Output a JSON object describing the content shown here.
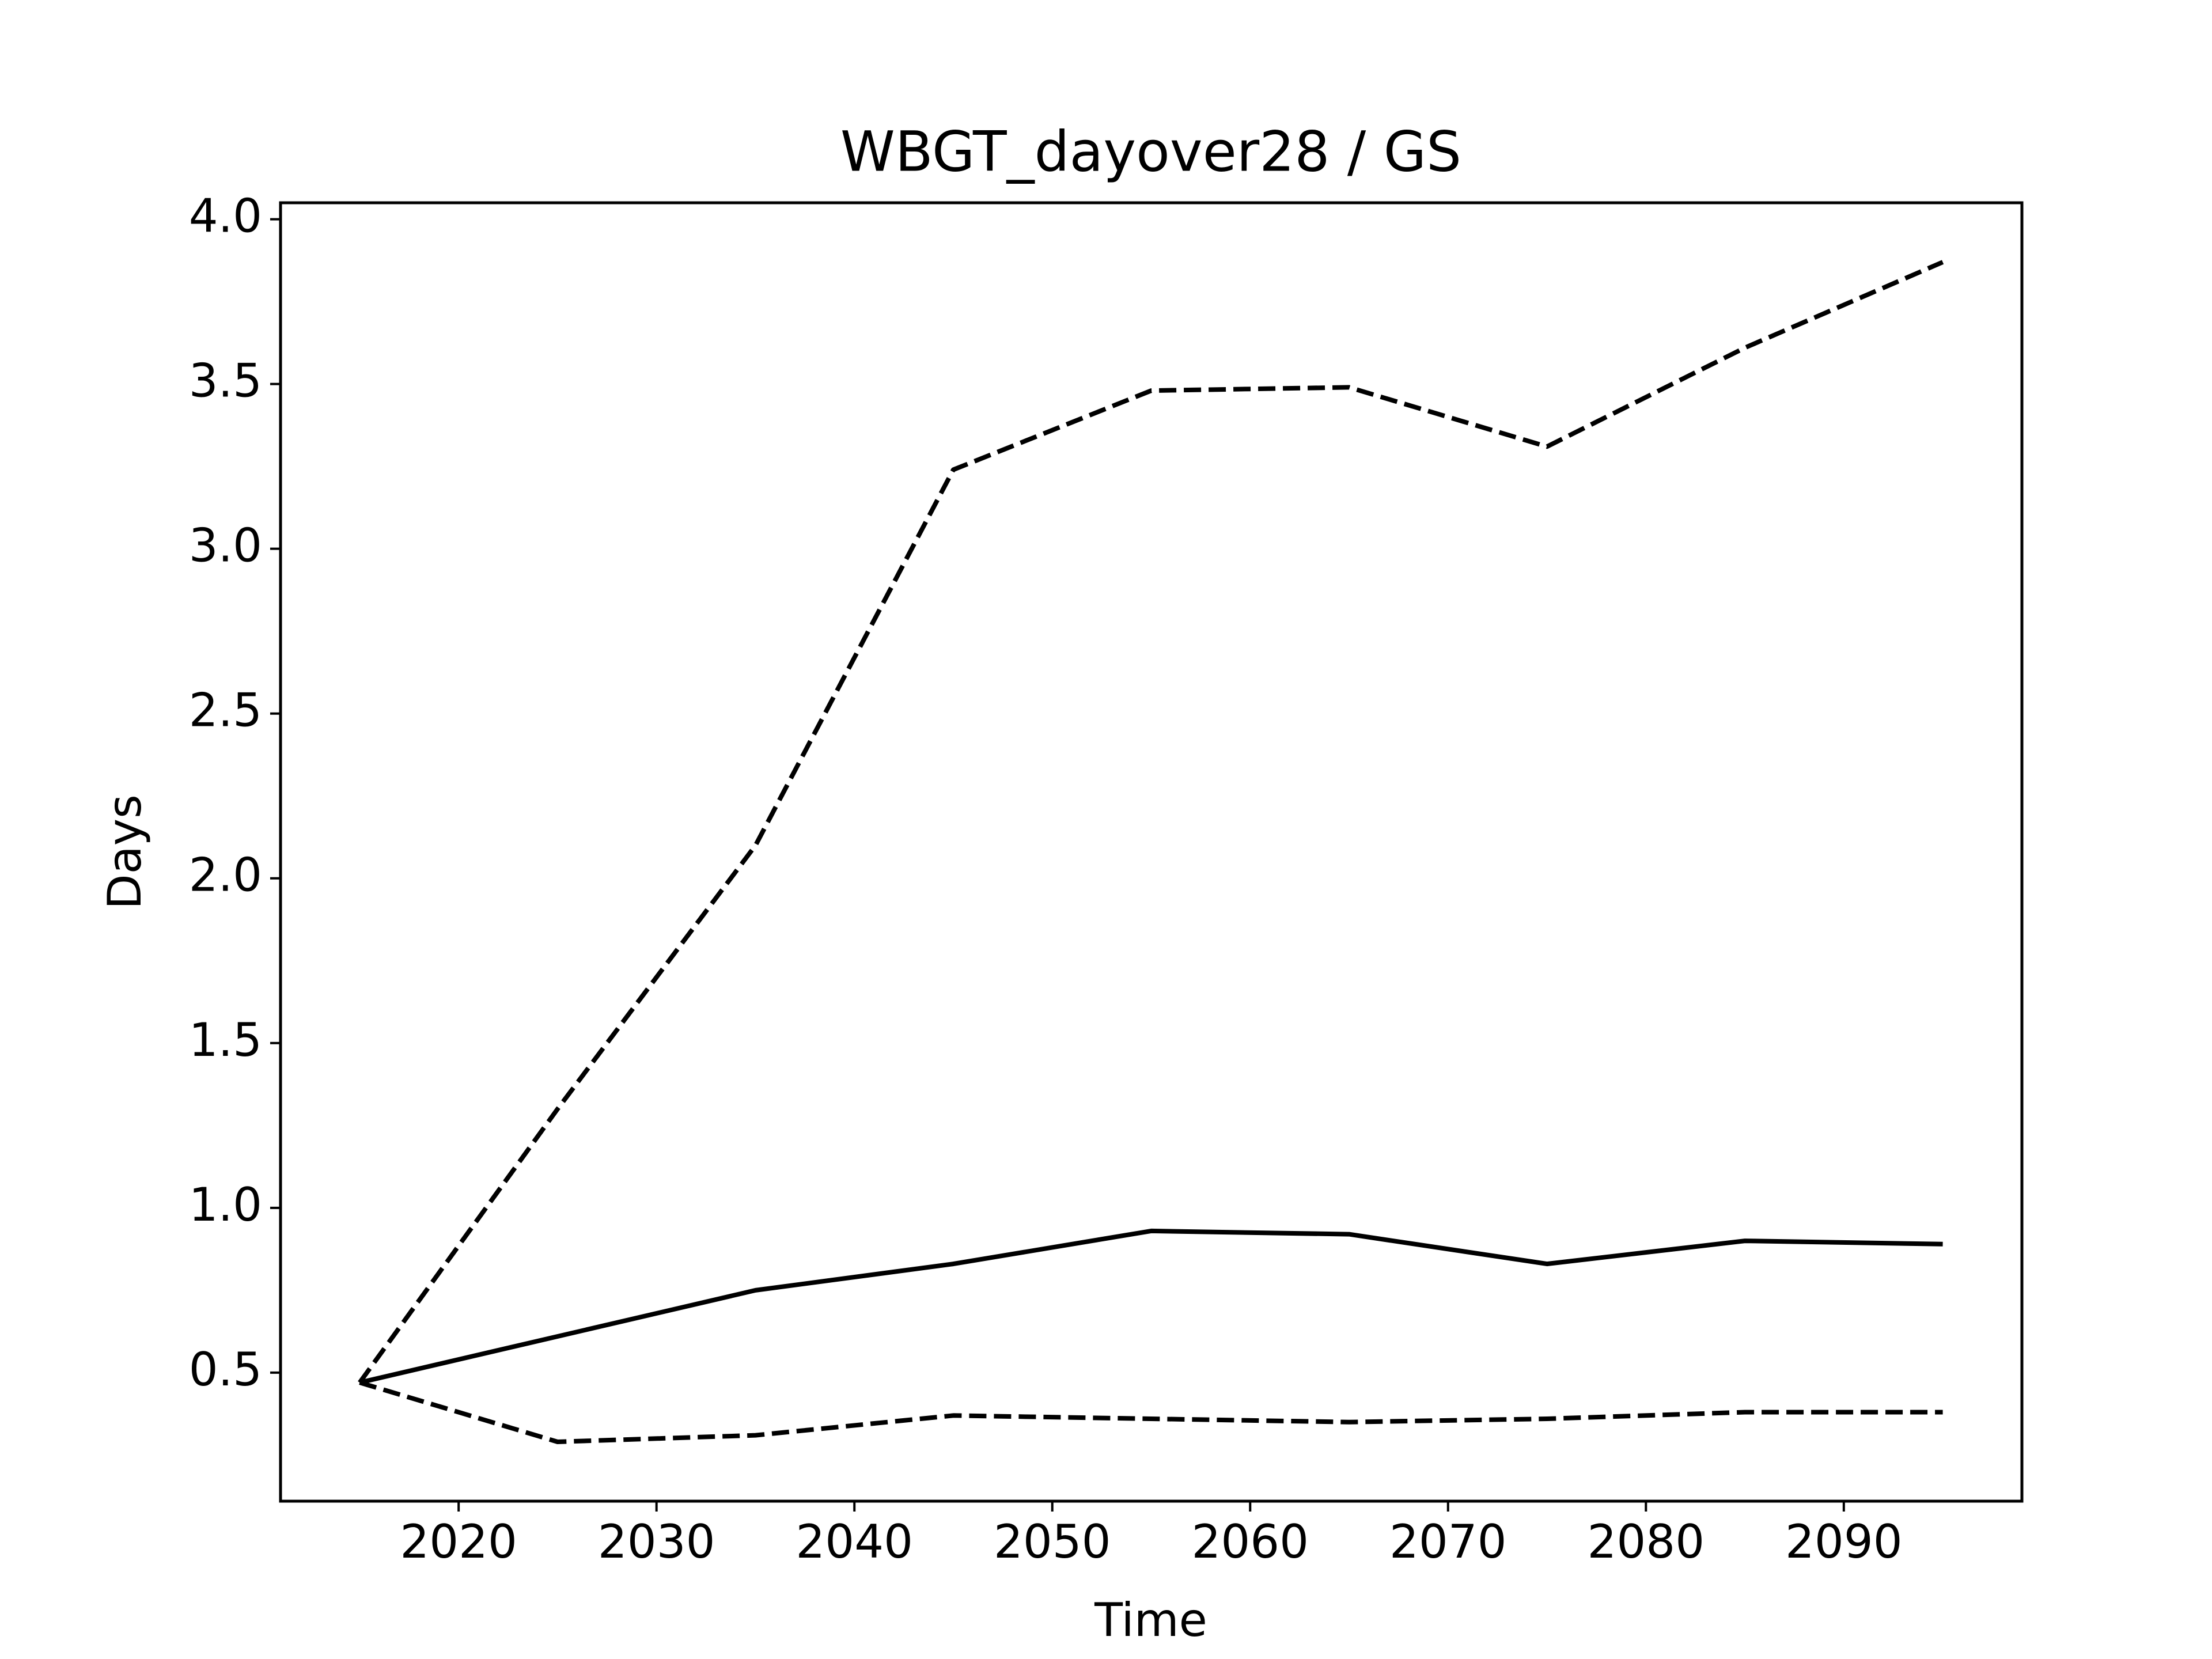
{
  "chart_data": {
    "type": "line",
    "title": "WBGT_dayover28 / GS",
    "xlabel": "Time",
    "ylabel": "Days",
    "xlim": [
      2011,
      2099
    ],
    "ylim": [
      0.11,
      4.05
    ],
    "xticks": [
      2020,
      2030,
      2040,
      2050,
      2060,
      2070,
      2080,
      2090
    ],
    "xtick_labels": [
      "2020",
      "2030",
      "2040",
      "2050",
      "2060",
      "2070",
      "2080",
      "2090"
    ],
    "yticks": [
      0.5,
      1.0,
      1.5,
      2.0,
      2.5,
      3.0,
      3.5,
      4.0
    ],
    "ytick_labels": [
      "0.5",
      "1.0",
      "1.5",
      "2.0",
      "2.5",
      "3.0",
      "3.5",
      "4.0"
    ],
    "grid": false,
    "x": [
      2015,
      2025,
      2035,
      2045,
      2055,
      2065,
      2075,
      2085,
      2095
    ],
    "series": [
      {
        "style": "solid",
        "color": "#000000",
        "values": [
          0.47,
          0.61,
          0.75,
          0.83,
          0.93,
          0.92,
          0.83,
          0.9,
          0.89
        ]
      },
      {
        "style": "dashed",
        "color": "#000000",
        "values": [
          0.47,
          1.3,
          2.1,
          3.24,
          3.48,
          3.49,
          3.31,
          3.61,
          3.87
        ]
      },
      {
        "style": "dashed",
        "color": "#000000",
        "values": [
          0.47,
          0.29,
          0.31,
          0.37,
          0.36,
          0.35,
          0.36,
          0.38,
          0.38
        ]
      }
    ]
  }
}
